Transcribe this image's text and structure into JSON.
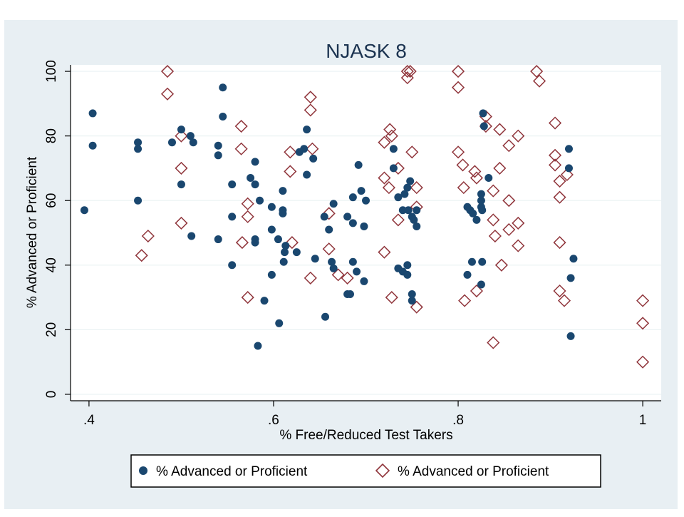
{
  "colors": {
    "outer_background": "#e8eff3",
    "plot_background": "#ffffff",
    "title": "#1b3350",
    "axis": "#000000",
    "series1": "#1a476f",
    "series2": "#90353b",
    "legend_border": "#000000"
  },
  "chart_data": {
    "type": "scatter",
    "title": "NJASK 8",
    "xlabel": "% Free/Reduced Test Takers",
    "ylabel": "% Advanced or Proficient",
    "xlim": [
      0.38,
      1.02
    ],
    "ylim": [
      -2,
      102
    ],
    "x_ticks": [
      0.4,
      0.6,
      0.8,
      1.0
    ],
    "x_tick_labels": [
      ".4",
      ".6",
      ".8",
      "1"
    ],
    "y_ticks": [
      0,
      20,
      40,
      60,
      80,
      100
    ],
    "y_tick_labels": [
      "0",
      "20",
      "40",
      "60",
      "80",
      "100"
    ],
    "grid": "horizontal",
    "legend_position": "bottom",
    "series": [
      {
        "name": "% Advanced or Proficient",
        "marker": "filled-circle",
        "points": [
          [
            0.395,
            57
          ],
          [
            0.404,
            87
          ],
          [
            0.404,
            77
          ],
          [
            0.453,
            78
          ],
          [
            0.453,
            76
          ],
          [
            0.453,
            60
          ],
          [
            0.49,
            78
          ],
          [
            0.5,
            82
          ],
          [
            0.5,
            65
          ],
          [
            0.51,
            80
          ],
          [
            0.513,
            78
          ],
          [
            0.511,
            49
          ],
          [
            0.54,
            77
          ],
          [
            0.54,
            74
          ],
          [
            0.54,
            48
          ],
          [
            0.545,
            95
          ],
          [
            0.545,
            86
          ],
          [
            0.555,
            65
          ],
          [
            0.555,
            55
          ],
          [
            0.555,
            40
          ],
          [
            0.575,
            67
          ],
          [
            0.58,
            65
          ],
          [
            0.58,
            72
          ],
          [
            0.58,
            48
          ],
          [
            0.58,
            47
          ],
          [
            0.583,
            15
          ],
          [
            0.585,
            60
          ],
          [
            0.59,
            29
          ],
          [
            0.598,
            58
          ],
          [
            0.598,
            51
          ],
          [
            0.598,
            37
          ],
          [
            0.605,
            48
          ],
          [
            0.606,
            22
          ],
          [
            0.61,
            63
          ],
          [
            0.61,
            57
          ],
          [
            0.61,
            56
          ],
          [
            0.611,
            41
          ],
          [
            0.612,
            44
          ],
          [
            0.613,
            46
          ],
          [
            0.625,
            44
          ],
          [
            0.628,
            75
          ],
          [
            0.633,
            76
          ],
          [
            0.636,
            82
          ],
          [
            0.636,
            68
          ],
          [
            0.643,
            73
          ],
          [
            0.645,
            42
          ],
          [
            0.655,
            55
          ],
          [
            0.656,
            24
          ],
          [
            0.66,
            51
          ],
          [
            0.663,
            41
          ],
          [
            0.665,
            59
          ],
          [
            0.665,
            39
          ],
          [
            0.68,
            55
          ],
          [
            0.68,
            31
          ],
          [
            0.683,
            31
          ],
          [
            0.686,
            41
          ],
          [
            0.686,
            53
          ],
          [
            0.686,
            61
          ],
          [
            0.69,
            38
          ],
          [
            0.692,
            71
          ],
          [
            0.695,
            63
          ],
          [
            0.698,
            52
          ],
          [
            0.698,
            35
          ],
          [
            0.7,
            60
          ],
          [
            0.73,
            70
          ],
          [
            0.73,
            76
          ],
          [
            0.735,
            61
          ],
          [
            0.74,
            57
          ],
          [
            0.74,
            38
          ],
          [
            0.742,
            62
          ],
          [
            0.745,
            64
          ],
          [
            0.746,
            57
          ],
          [
            0.748,
            66
          ],
          [
            0.75,
            55
          ],
          [
            0.75,
            31
          ],
          [
            0.75,
            29
          ],
          [
            0.752,
            54
          ],
          [
            0.755,
            52
          ],
          [
            0.755,
            57
          ],
          [
            0.745,
            37
          ],
          [
            0.745,
            40
          ],
          [
            0.735,
            39
          ],
          [
            0.81,
            58
          ],
          [
            0.81,
            37
          ],
          [
            0.813,
            57
          ],
          [
            0.816,
            56
          ],
          [
            0.815,
            41
          ],
          [
            0.82,
            54
          ],
          [
            0.825,
            62
          ],
          [
            0.825,
            60
          ],
          [
            0.825,
            58
          ],
          [
            0.827,
            87
          ],
          [
            0.828,
            83
          ],
          [
            0.825,
            34
          ],
          [
            0.826,
            41
          ],
          [
            0.833,
            67
          ],
          [
            0.826,
            57
          ],
          [
            0.92,
            76
          ],
          [
            0.92,
            70
          ],
          [
            0.922,
            36
          ],
          [
            0.922,
            18
          ],
          [
            0.925,
            42
          ]
        ]
      },
      {
        "name": "% Advanced or Proficient",
        "marker": "hollow-diamond",
        "points": [
          [
            0.457,
            43
          ],
          [
            0.464,
            49
          ],
          [
            0.485,
            100
          ],
          [
            0.485,
            93
          ],
          [
            0.5,
            80
          ],
          [
            0.5,
            70
          ],
          [
            0.5,
            53
          ],
          [
            0.565,
            83
          ],
          [
            0.565,
            76
          ],
          [
            0.566,
            47
          ],
          [
            0.572,
            59
          ],
          [
            0.572,
            55
          ],
          [
            0.572,
            30
          ],
          [
            0.618,
            75
          ],
          [
            0.618,
            69
          ],
          [
            0.62,
            47
          ],
          [
            0.64,
            92
          ],
          [
            0.64,
            88
          ],
          [
            0.642,
            76
          ],
          [
            0.64,
            36
          ],
          [
            0.66,
            45
          ],
          [
            0.66,
            56
          ],
          [
            0.67,
            37
          ],
          [
            0.68,
            36
          ],
          [
            0.72,
            78
          ],
          [
            0.72,
            67
          ],
          [
            0.72,
            44
          ],
          [
            0.725,
            64
          ],
          [
            0.726,
            82
          ],
          [
            0.728,
            80
          ],
          [
            0.728,
            30
          ],
          [
            0.735,
            70
          ],
          [
            0.735,
            54
          ],
          [
            0.745,
            100
          ],
          [
            0.745,
            98
          ],
          [
            0.748,
            100
          ],
          [
            0.75,
            75
          ],
          [
            0.755,
            64
          ],
          [
            0.755,
            58
          ],
          [
            0.755,
            27
          ],
          [
            0.8,
            100
          ],
          [
            0.8,
            95
          ],
          [
            0.8,
            75
          ],
          [
            0.805,
            71
          ],
          [
            0.806,
            64
          ],
          [
            0.807,
            29
          ],
          [
            0.818,
            69
          ],
          [
            0.82,
            32
          ],
          [
            0.82,
            67
          ],
          [
            0.83,
            86
          ],
          [
            0.83,
            83
          ],
          [
            0.838,
            54
          ],
          [
            0.838,
            63
          ],
          [
            0.838,
            16
          ],
          [
            0.84,
            49
          ],
          [
            0.845,
            82
          ],
          [
            0.845,
            70
          ],
          [
            0.847,
            40
          ],
          [
            0.855,
            77
          ],
          [
            0.855,
            60
          ],
          [
            0.855,
            51
          ],
          [
            0.865,
            80
          ],
          [
            0.865,
            53
          ],
          [
            0.865,
            46
          ],
          [
            0.885,
            100
          ],
          [
            0.888,
            97
          ],
          [
            0.905,
            84
          ],
          [
            0.905,
            74
          ],
          [
            0.905,
            71
          ],
          [
            0.91,
            66
          ],
          [
            0.91,
            61
          ],
          [
            0.91,
            47
          ],
          [
            0.91,
            32
          ],
          [
            0.915,
            29
          ],
          [
            0.918,
            68
          ],
          [
            1.0,
            29
          ],
          [
            1.0,
            22
          ],
          [
            1.0,
            10
          ]
        ]
      }
    ]
  }
}
